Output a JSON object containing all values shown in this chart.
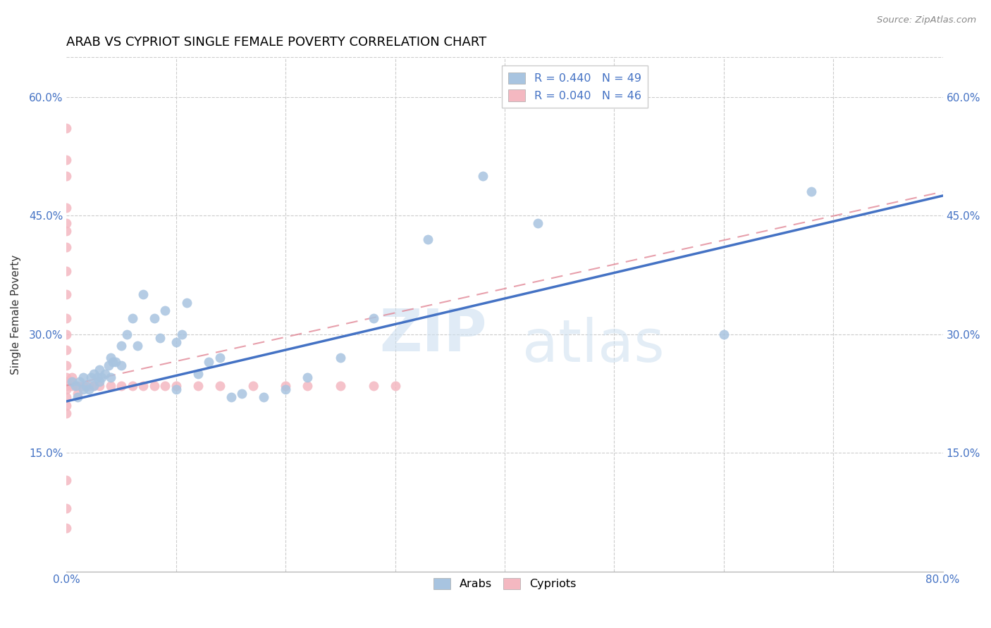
{
  "title": "ARAB VS CYPRIOT SINGLE FEMALE POVERTY CORRELATION CHART",
  "source": "Source: ZipAtlas.com",
  "xlabel": "",
  "ylabel": "Single Female Poverty",
  "xlim": [
    0.0,
    0.8
  ],
  "ylim": [
    0.0,
    0.65
  ],
  "xticks": [
    0.0,
    0.1,
    0.2,
    0.3,
    0.4,
    0.5,
    0.6,
    0.7,
    0.8
  ],
  "xticklabels": [
    "0.0%",
    "",
    "",
    "",
    "",
    "",
    "",
    "",
    "80.0%"
  ],
  "yticks": [
    0.0,
    0.15,
    0.3,
    0.45,
    0.6
  ],
  "yticklabels_left": [
    "",
    "15.0%",
    "30.0%",
    "45.0%",
    "60.0%"
  ],
  "yticklabels_right": [
    "",
    "15.0%",
    "30.0%",
    "45.0%",
    "60.0%"
  ],
  "arab_color": "#a8c4e0",
  "cypriot_color": "#f4b8c1",
  "arab_line_color": "#4472c4",
  "cypriot_line_color": "#e8a0aa",
  "legend_arab_label": "R = 0.440   N = 49",
  "legend_cypriot_label": "R = 0.040   N = 46",
  "watermark_zip": "ZIP",
  "watermark_atlas": "atlas",
  "arab_R": 0.44,
  "arab_N": 49,
  "cypriot_R": 0.04,
  "cypriot_N": 46,
  "arab_x": [
    0.005,
    0.008,
    0.01,
    0.012,
    0.015,
    0.015,
    0.018,
    0.02,
    0.022,
    0.025,
    0.025,
    0.028,
    0.03,
    0.03,
    0.032,
    0.035,
    0.038,
    0.04,
    0.04,
    0.042,
    0.045,
    0.05,
    0.05,
    0.055,
    0.06,
    0.065,
    0.07,
    0.08,
    0.085,
    0.09,
    0.1,
    0.1,
    0.105,
    0.11,
    0.12,
    0.13,
    0.14,
    0.15,
    0.16,
    0.18,
    0.2,
    0.22,
    0.25,
    0.28,
    0.33,
    0.38,
    0.43,
    0.6,
    0.68
  ],
  "arab_y": [
    0.24,
    0.235,
    0.22,
    0.24,
    0.23,
    0.245,
    0.235,
    0.23,
    0.245,
    0.235,
    0.25,
    0.245,
    0.24,
    0.255,
    0.245,
    0.25,
    0.26,
    0.27,
    0.245,
    0.265,
    0.265,
    0.285,
    0.26,
    0.3,
    0.32,
    0.285,
    0.35,
    0.32,
    0.295,
    0.33,
    0.23,
    0.29,
    0.3,
    0.34,
    0.25,
    0.265,
    0.27,
    0.22,
    0.225,
    0.22,
    0.23,
    0.245,
    0.27,
    0.32,
    0.42,
    0.5,
    0.44,
    0.3,
    0.48
  ],
  "cypriot_x": [
    0.0,
    0.0,
    0.0,
    0.0,
    0.0,
    0.0,
    0.0,
    0.0,
    0.0,
    0.0,
    0.0,
    0.0,
    0.0,
    0.0,
    0.0,
    0.0,
    0.0,
    0.0,
    0.0,
    0.0,
    0.0,
    0.0,
    0.0,
    0.005,
    0.005,
    0.01,
    0.01,
    0.015,
    0.02,
    0.025,
    0.03,
    0.04,
    0.05,
    0.06,
    0.07,
    0.08,
    0.09,
    0.1,
    0.12,
    0.14,
    0.17,
    0.2,
    0.22,
    0.25,
    0.28,
    0.3
  ],
  "cypriot_y": [
    0.56,
    0.52,
    0.5,
    0.46,
    0.44,
    0.43,
    0.41,
    0.38,
    0.35,
    0.32,
    0.3,
    0.28,
    0.26,
    0.245,
    0.24,
    0.235,
    0.23,
    0.22,
    0.21,
    0.2,
    0.115,
    0.08,
    0.055,
    0.245,
    0.235,
    0.235,
    0.225,
    0.235,
    0.235,
    0.235,
    0.235,
    0.235,
    0.235,
    0.235,
    0.235,
    0.235,
    0.235,
    0.235,
    0.235,
    0.235,
    0.235,
    0.235,
    0.235,
    0.235,
    0.235,
    0.235
  ]
}
